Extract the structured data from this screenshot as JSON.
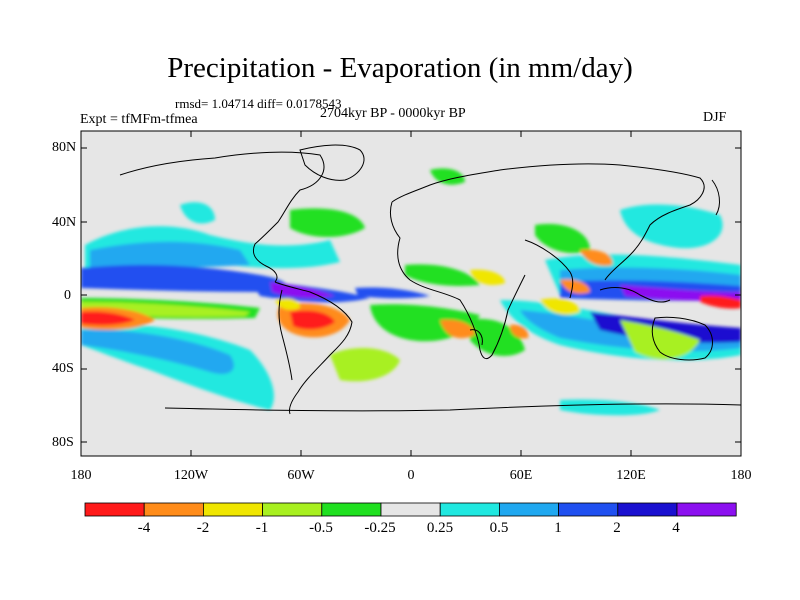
{
  "title": "Precipitation - Evaporation (in mm/day)",
  "stats": "rmsd= 1.04714  diff= 0.0178543",
  "period": "2704kyr BP - 0000kyr BP",
  "experiment": "Expt = tfMFm-tfmea",
  "season": "DJF",
  "lat_ticks": [
    "80N",
    "40N",
    "0",
    "40S",
    "80S"
  ],
  "lon_ticks": [
    "180",
    "120W",
    "60W",
    "0",
    "60E",
    "120E",
    "180"
  ],
  "colorbar": {
    "colors": [
      "#ff1a1a",
      "#ff8c1a",
      "#f0e600",
      "#a8f020",
      "#20e020",
      "#e6e6e6",
      "#20e8e0",
      "#20a8f0",
      "#2050f0",
      "#1a10d0",
      "#8c10f0"
    ],
    "labels": [
      "-4",
      "-2",
      "-1",
      "-0.5",
      "-0.25",
      "0.25",
      "0.5",
      "1",
      "2",
      "4"
    ]
  },
  "colors": {
    "land_background": "#e6e6e6",
    "coastline": "#000000"
  }
}
